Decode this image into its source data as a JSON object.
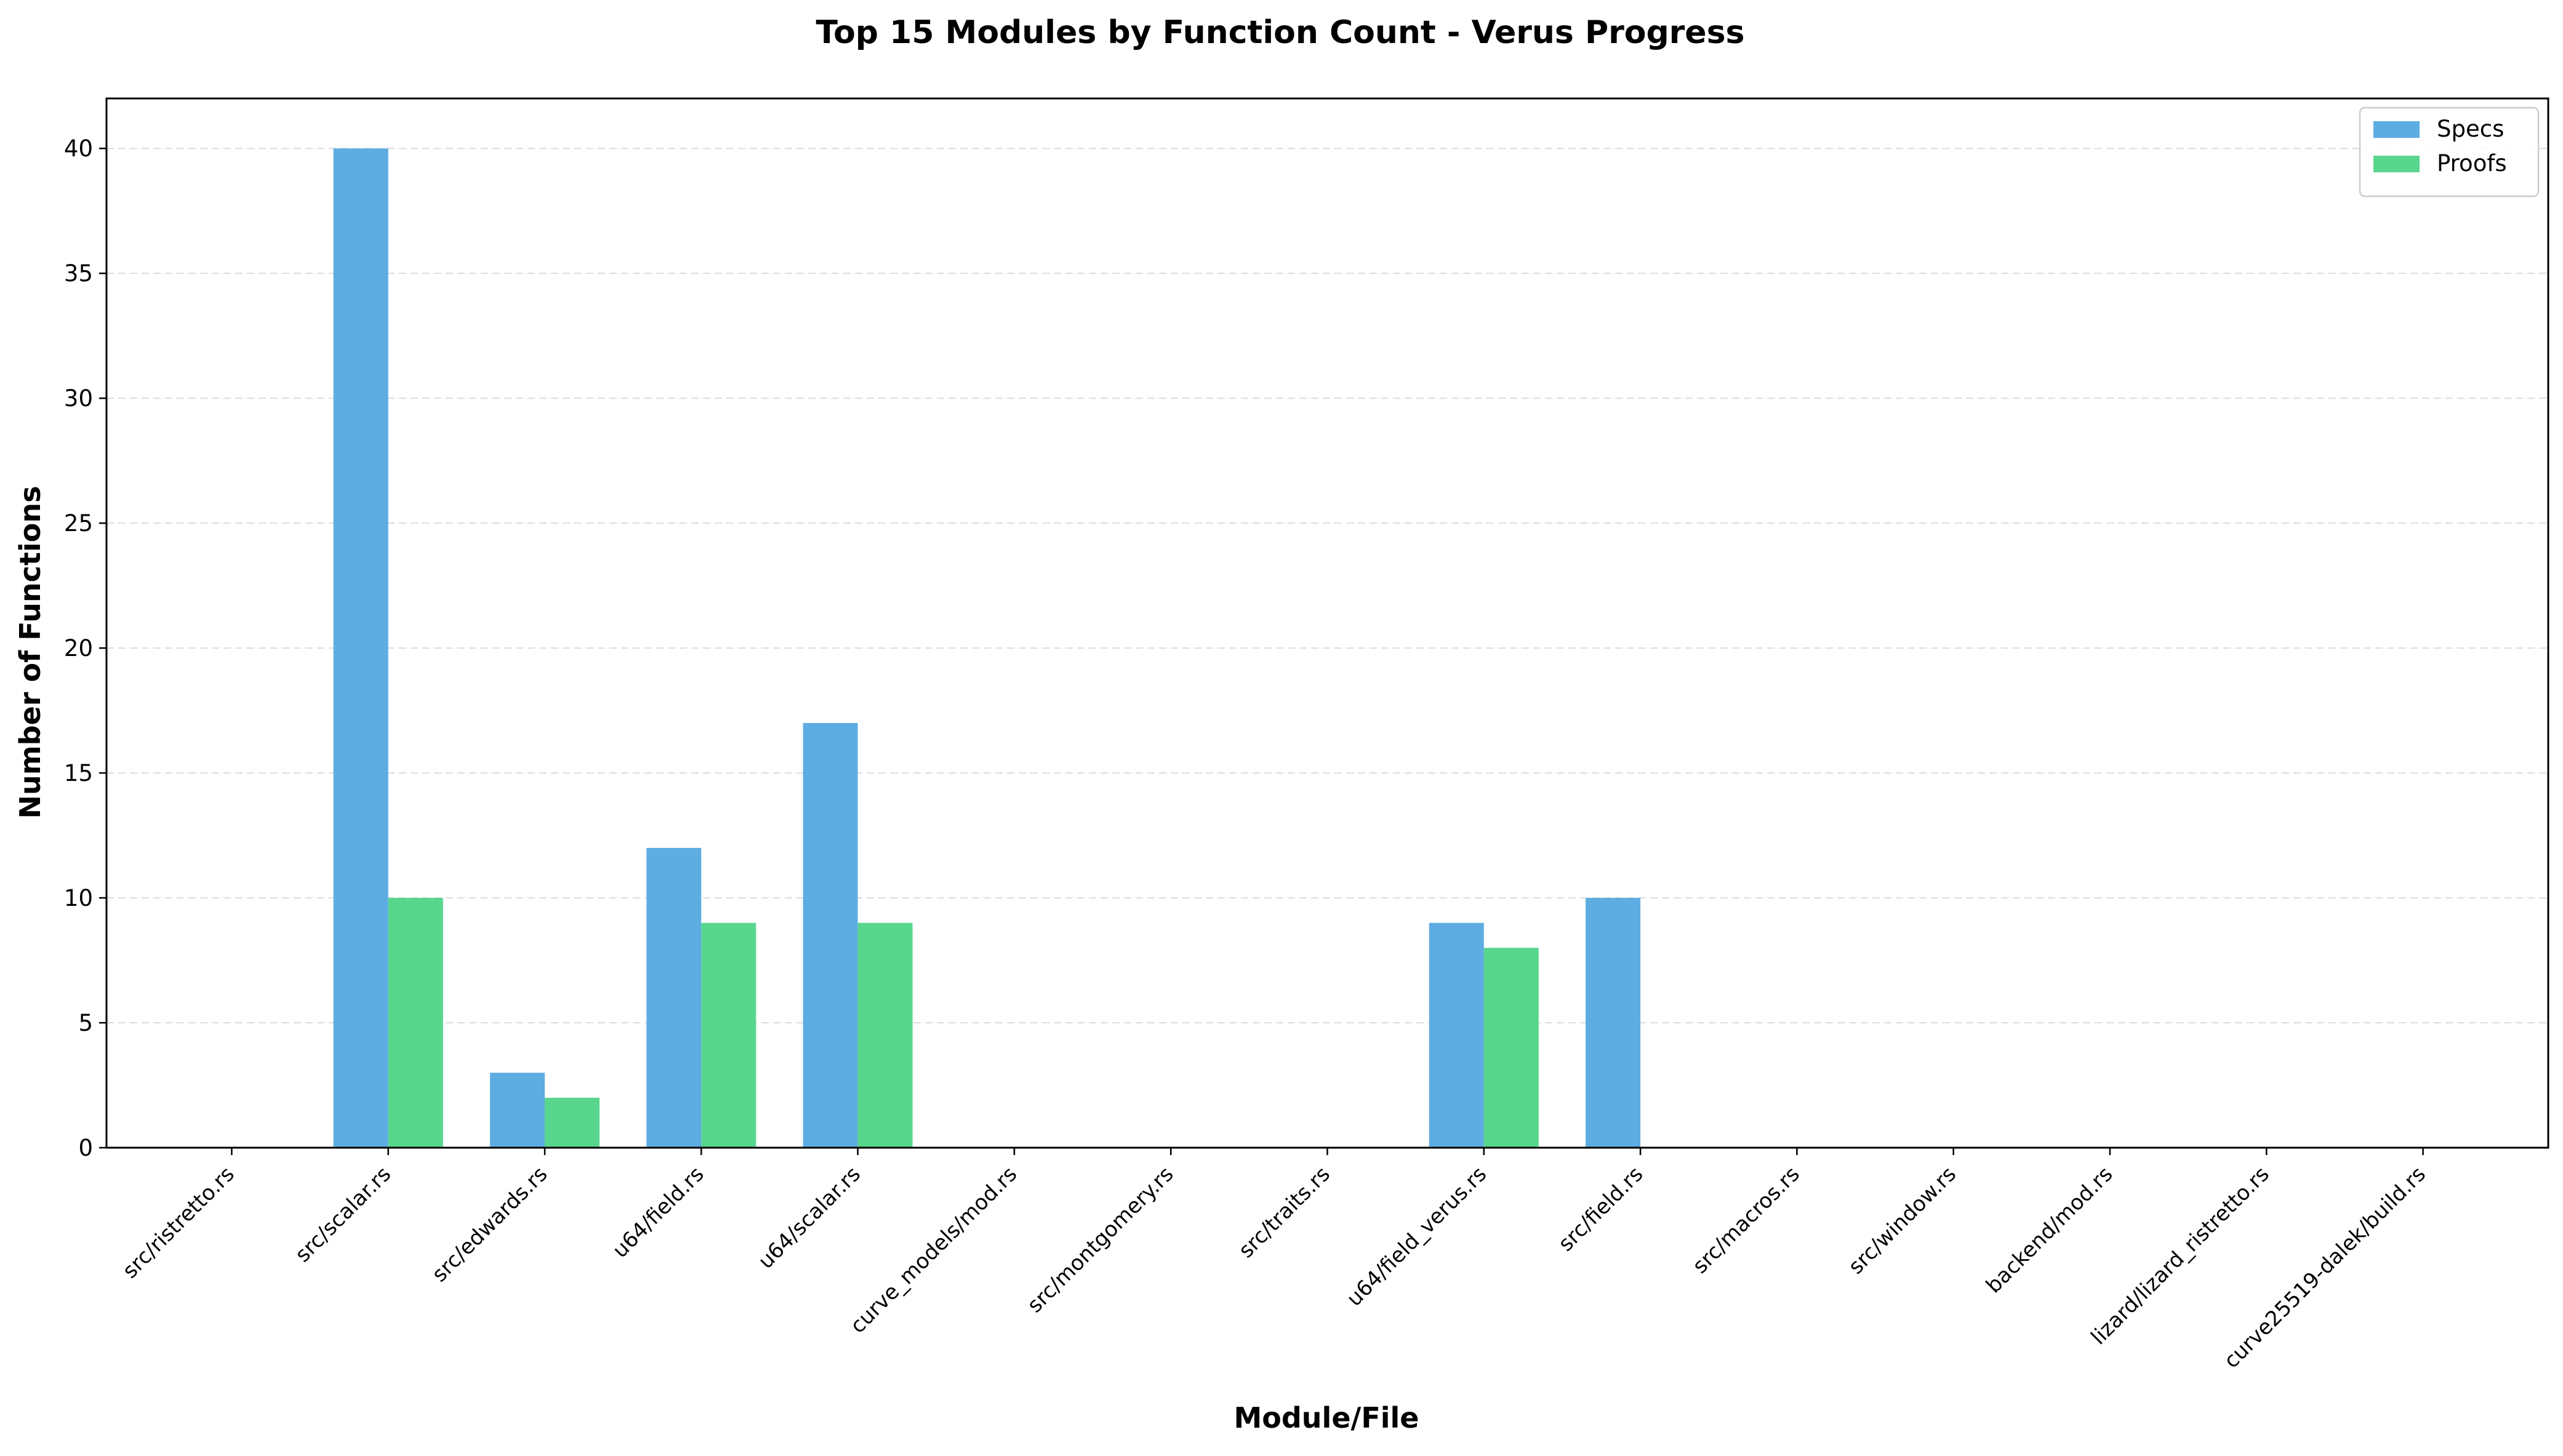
{
  "chart_data": {
    "type": "bar",
    "title": "Top 15 Modules by Function Count - Verus Progress",
    "xlabel": "Module/File",
    "ylabel": "Number of Functions",
    "ylim": [
      0,
      42
    ],
    "yticks": [
      0,
      5,
      10,
      15,
      20,
      25,
      30,
      35,
      40
    ],
    "grid": "horizontal dashed",
    "legend_position": "top-right",
    "categories": [
      "src/ristretto.rs",
      "src/scalar.rs",
      "src/edwards.rs",
      "u64/field.rs",
      "u64/scalar.rs",
      "curve_models/mod.rs",
      "src/montgomery.rs",
      "src/traits.rs",
      "u64/field_verus.rs",
      "src/field.rs",
      "src/macros.rs",
      "src/window.rs",
      "backend/mod.rs",
      "lizard/lizard_ristretto.rs",
      "curve25519-dalek/build.rs"
    ],
    "series": [
      {
        "name": "Specs",
        "color": "#5dade2",
        "values": [
          0,
          40,
          3,
          12,
          17,
          0,
          0,
          0,
          9,
          10,
          0,
          0,
          0,
          0,
          0
        ]
      },
      {
        "name": "Proofs",
        "color": "#58d68d",
        "values": [
          0,
          10,
          2,
          9,
          9,
          0,
          0,
          0,
          8,
          0,
          0,
          0,
          0,
          0,
          0
        ]
      }
    ]
  }
}
